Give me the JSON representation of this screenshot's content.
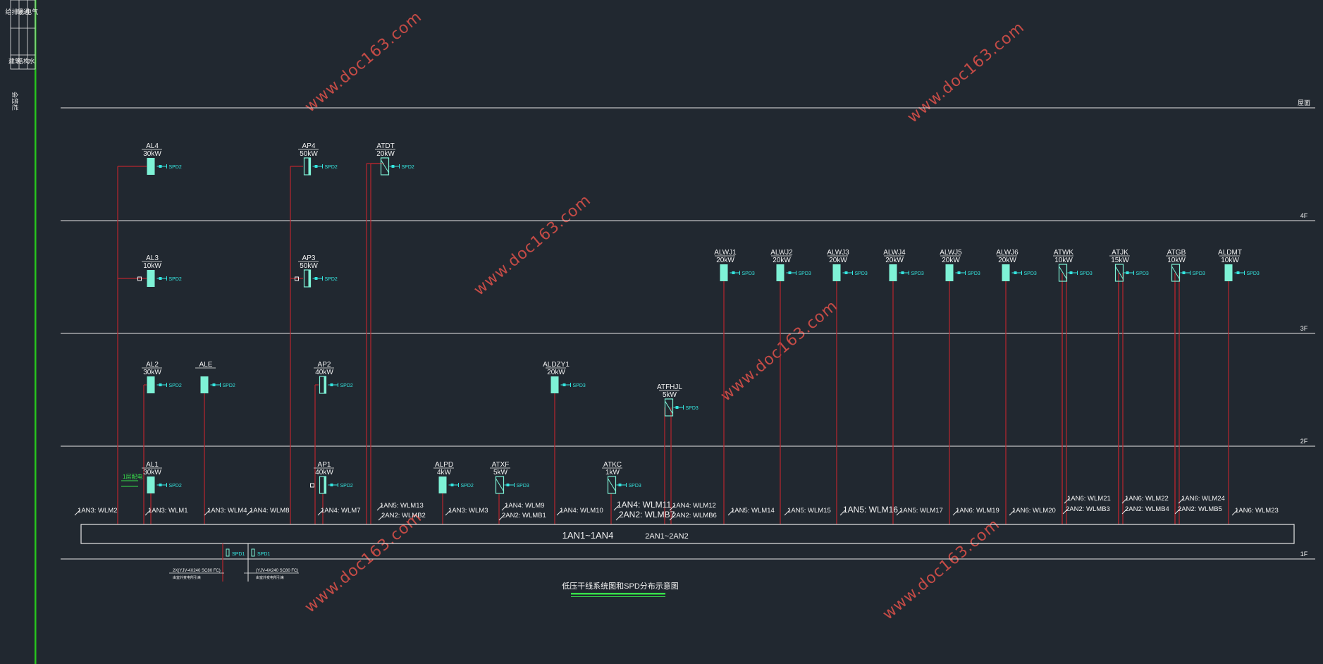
{
  "colors": {
    "background": "#212830",
    "floor_line": "#e6e6e6",
    "feeder_line": "#b8252d",
    "panel": "#7ef2d6",
    "spd_text": "#35e6e0",
    "label": "#f2f2f2",
    "frame": "#27c41e",
    "legend_green": "#37e04a",
    "watermark": "#c44b46"
  },
  "floors": [
    "屋面",
    "4F",
    "3F",
    "2F",
    "1F"
  ],
  "busbar": {
    "label1": "1AN1~1AN4",
    "label2": "2AN1~2AN2"
  },
  "title": "低压干线系统图和SPD分布示意图",
  "watermark": "www.doc163.com",
  "frame_side_text": "会签栏",
  "frame_top_cells": [
    "给排水",
    "暖通",
    "电气",
    "建筑",
    "结构",
    "水"
  ],
  "legend_small_text": "1层配电",
  "panels": [
    {
      "name": "AL4",
      "power": "30kW",
      "spd": "SPD2"
    },
    {
      "name": "AP4",
      "power": "50kW",
      "spd": "SPD2"
    },
    {
      "name": "ATDT",
      "power": "20kW",
      "spd": "SPD2"
    },
    {
      "name": "AL3",
      "power": "10kW",
      "spd": "SPD2"
    },
    {
      "name": "AP3",
      "power": "50kW",
      "spd": "SPD2"
    },
    {
      "name": "ALWJ1",
      "power": "20kW",
      "spd": "SPD3"
    },
    {
      "name": "ALWJ2",
      "power": "20kW",
      "spd": "SPD3"
    },
    {
      "name": "ALWJ3",
      "power": "20kW",
      "spd": "SPD3"
    },
    {
      "name": "ALWJ4",
      "power": "20kW",
      "spd": "SPD3"
    },
    {
      "name": "ALWJ5",
      "power": "20kW",
      "spd": "SPD3"
    },
    {
      "name": "ALWJ6",
      "power": "20kW",
      "spd": "SPD3"
    },
    {
      "name": "ATWK",
      "power": "10kW",
      "spd": "SPD3"
    },
    {
      "name": "ATJK",
      "power": "15kW",
      "spd": "SPD3"
    },
    {
      "name": "ATGB",
      "power": "10kW",
      "spd": "SPD3"
    },
    {
      "name": "ALDMT",
      "power": "10kW",
      "spd": "SPD3"
    },
    {
      "name": "AL2",
      "power": "30kW",
      "spd": "SPD2"
    },
    {
      "name": "ALE",
      "power": "",
      "spd": "SPD2"
    },
    {
      "name": "AP2",
      "power": "40kW",
      "spd": "SPD2"
    },
    {
      "name": "ALDZY1",
      "power": "20kW",
      "spd": "SPD3"
    },
    {
      "name": "ATFHJL",
      "power": "5kW",
      "spd": "SPD3"
    },
    {
      "name": "AL1",
      "power": "30kW",
      "spd": "SPD2"
    },
    {
      "name": "AP1",
      "power": "40kW",
      "spd": "SPD2"
    },
    {
      "name": "ALPD",
      "power": "4kW",
      "spd": "SPD2"
    },
    {
      "name": "ATXF",
      "power": "5kW",
      "spd": "SPD3"
    },
    {
      "name": "ATKC",
      "power": "1kW",
      "spd": "SPD3"
    }
  ],
  "circuits": [
    "1AN3: WLM2",
    "1AN3: WLM1",
    "1AN3: WLM4",
    "1AN4: WLM8",
    "1AN4: WLM7",
    "1AN5: WLM13",
    "2AN2: WLMB2",
    "1AN3: WLM3",
    "1AN4: WLM9",
    "2AN2: WLMB1",
    "1AN4: WLM10",
    "1AN4: WLM11",
    "2AN2: WLMB7",
    "1AN4: WLM12",
    "2AN2: WLMB6",
    "1AN5: WLM14",
    "1AN5: WLM15",
    "1AN5: WLM16",
    "1AN5: WLM17",
    "1AN6: WLM19",
    "1AN6: WLM20",
    "1AN6: WLM21",
    "2AN2: WLMB3",
    "1AN6: WLM22",
    "2AN2: WLMB4",
    "1AN6: WLM24",
    "2AN2: WLMB5",
    "1AN6: WLM23"
  ],
  "incoming": [
    {
      "spd": "SPD1",
      "cable": "2X(YJV-4X240 SC80 FC)",
      "note": "由室外变电所引来"
    },
    {
      "spd": "SPD1",
      "cable": "(YJV-4X240 SC80 FC)",
      "note": "由室外变电所引来"
    }
  ]
}
